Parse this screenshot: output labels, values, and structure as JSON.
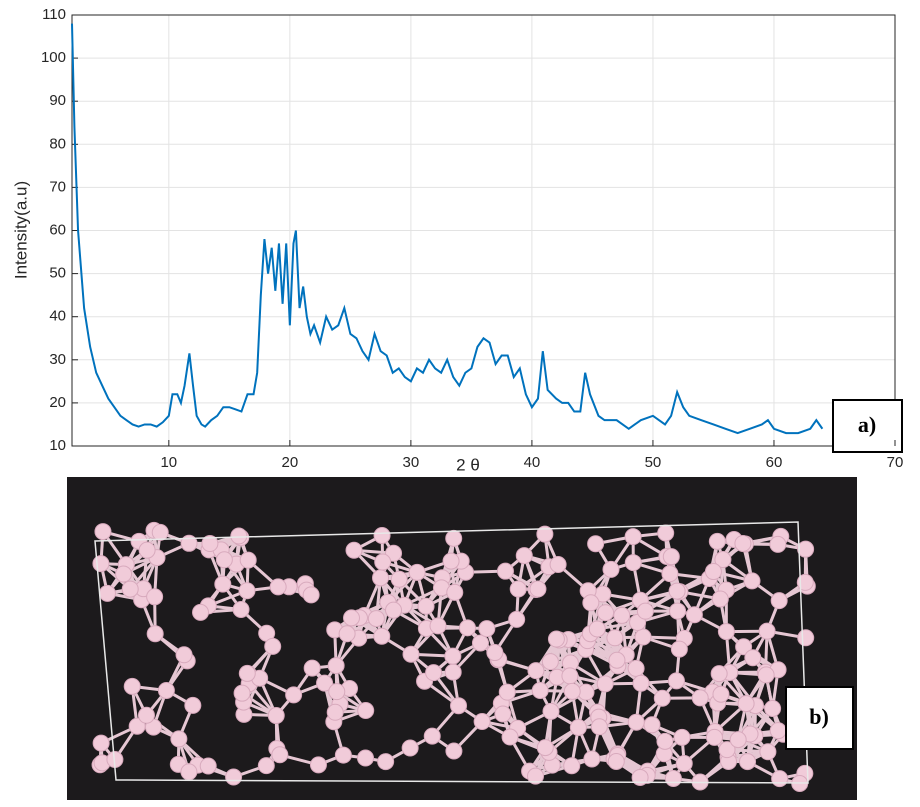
{
  "chart_data": {
    "type": "line",
    "xlabel": "2 θ",
    "ylabel": "Intensity(a.u)",
    "panel_a_label": "a)",
    "panel_b_label": "b)",
    "xlim": [
      2,
      70
    ],
    "ylim": [
      10,
      110
    ],
    "xticks": [
      10,
      20,
      30,
      40,
      50,
      60,
      70
    ],
    "yticks": [
      10,
      20,
      30,
      40,
      50,
      60,
      70,
      80,
      90,
      100,
      110
    ],
    "grid": true,
    "series": [
      {
        "color": "#0072bd",
        "x": [
          2,
          2.2,
          2.5,
          3,
          3.5,
          4,
          4.5,
          5,
          5.5,
          6,
          6.5,
          7,
          7.5,
          8,
          8.5,
          9,
          9.5,
          10,
          10.3,
          10.7,
          11,
          11.3,
          11.7,
          12,
          12.3,
          12.7,
          13,
          13.5,
          14,
          14.5,
          15,
          15.5,
          16,
          16.5,
          17,
          17.3,
          17.6,
          17.9,
          18.2,
          18.5,
          18.8,
          19.1,
          19.4,
          19.7,
          20,
          20.3,
          20.5,
          20.8,
          21.1,
          21.4,
          21.7,
          22,
          22.5,
          23,
          23.5,
          24,
          24.5,
          25,
          25.5,
          26,
          26.5,
          27,
          27.5,
          28,
          28.5,
          29,
          29.5,
          30,
          30.5,
          31,
          31.5,
          32,
          32.5,
          33,
          33.5,
          34,
          34.5,
          35,
          35.5,
          36,
          36.5,
          37,
          37.5,
          38,
          38.5,
          39,
          39.5,
          40,
          40.5,
          40.9,
          41.3,
          42,
          42.5,
          43,
          43.5,
          44,
          44.4,
          44.8,
          45.5,
          46,
          47,
          48,
          48.5,
          49,
          50,
          51,
          51.5,
          52,
          52.5,
          53,
          54,
          55,
          56,
          57,
          58,
          59,
          59.5,
          60,
          61,
          62,
          63,
          63.5,
          64
        ],
        "values": [
          108,
          84,
          60,
          42,
          33,
          27,
          24,
          21,
          19,
          17,
          16,
          15,
          14.5,
          15,
          15,
          14.5,
          15.5,
          17,
          22,
          22,
          20,
          24,
          31.5,
          24,
          17,
          15,
          14.5,
          16,
          17,
          19,
          19,
          18.5,
          18,
          22,
          22,
          27,
          45,
          58,
          50,
          56,
          46,
          57,
          43,
          57,
          38,
          57,
          60,
          42,
          47,
          40,
          36,
          38,
          34,
          40,
          37,
          38,
          42,
          36,
          35,
          32,
          30,
          36,
          32,
          31,
          27,
          28,
          26,
          25,
          28,
          27,
          30,
          28,
          27,
          30,
          26,
          24,
          27,
          28,
          33,
          35,
          34,
          29,
          31,
          31,
          26,
          28,
          22,
          19,
          21,
          32,
          23,
          21,
          20,
          20,
          18,
          18,
          27,
          22,
          17,
          16,
          16,
          14,
          15,
          16,
          17,
          15,
          17,
          22.5,
          19,
          17,
          16,
          15,
          14,
          13,
          14,
          15,
          16,
          14,
          13,
          13,
          14,
          16,
          14
        ]
      }
    ]
  }
}
